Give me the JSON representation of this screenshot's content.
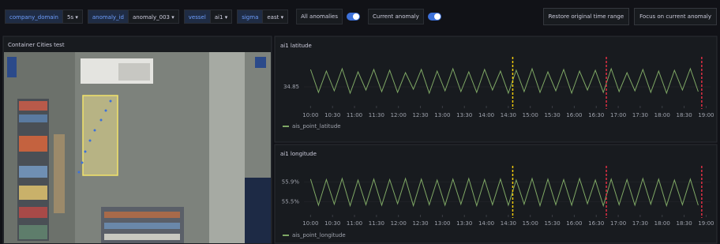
{
  "toolbar": {
    "variables": [
      {
        "label": "company_domain",
        "value": "5s"
      },
      {
        "label": "anomaly_id",
        "value": "anomaly_003"
      },
      {
        "label": "vessel",
        "value": "ai1"
      },
      {
        "label": "sigma",
        "value": "east"
      }
    ],
    "toggles": [
      {
        "label": "All anomalies",
        "on": true
      },
      {
        "label": "Current anomaly",
        "on": true
      }
    ],
    "buttons": [
      "Restore original time range",
      "Focus on current anomaly"
    ]
  },
  "map_panel": {
    "title": "Container Cities test"
  },
  "panels": [
    {
      "type": "line",
      "title": "ai1 latitude",
      "x": [
        10.0,
        10.18,
        10.36,
        10.54,
        10.72,
        10.9,
        11.08,
        11.26,
        11.44,
        11.62,
        11.8,
        11.98,
        12.16,
        12.34,
        12.52,
        12.7,
        12.88,
        13.06,
        13.24,
        13.42,
        13.6,
        13.78,
        13.96,
        14.14,
        14.32,
        14.5,
        14.68,
        14.86,
        15.04,
        15.22,
        15.4,
        15.58,
        15.76,
        15.94,
        16.12,
        16.3,
        16.48,
        16.66,
        16.84,
        17.02,
        17.2,
        17.38,
        17.56,
        17.74,
        17.92,
        18.1,
        18.28,
        18.46,
        18.64,
        18.82
      ],
      "series": [
        {
          "name": "ais_point_latitude",
          "color": "#7fa865",
          "values": [
            34.872,
            34.843,
            34.87,
            34.845,
            34.873,
            34.842,
            34.869,
            34.846,
            34.872,
            34.844,
            34.871,
            34.843,
            34.868,
            34.847,
            34.872,
            34.842,
            34.87,
            34.845,
            34.873,
            34.844,
            34.869,
            34.843,
            34.872,
            34.846,
            34.87,
            34.842,
            34.871,
            34.844,
            34.873,
            34.843,
            34.869,
            34.845,
            34.872,
            34.842,
            34.87,
            34.846,
            34.871,
            34.843,
            34.873,
            34.844,
            34.868,
            34.845,
            34.872,
            34.843,
            34.87,
            34.842,
            34.871,
            34.846,
            34.873,
            34.844
          ]
        }
      ],
      "xlim": [
        9.85,
        19.1
      ],
      "ylim": [
        34.83,
        34.88
      ],
      "xticks": [
        {
          "value": 10,
          "label": "10:00"
        },
        {
          "value": 10.5,
          "label": "10:30"
        },
        {
          "value": 11,
          "label": "11:00"
        },
        {
          "value": 11.5,
          "label": "11:30"
        },
        {
          "value": 12,
          "label": "12:00"
        },
        {
          "value": 12.5,
          "label": "12:30"
        },
        {
          "value": 13,
          "label": "13:00"
        },
        {
          "value": 13.5,
          "label": "13:30"
        },
        {
          "value": 14,
          "label": "14:00"
        },
        {
          "value": 14.5,
          "label": "14:30"
        },
        {
          "value": 15,
          "label": "15:00"
        },
        {
          "value": 15.5,
          "label": "15:30"
        },
        {
          "value": 16,
          "label": "16:00"
        },
        {
          "value": 16.5,
          "label": "16:30"
        },
        {
          "value": 17,
          "label": "17:00"
        },
        {
          "value": 17.5,
          "label": "17:30"
        },
        {
          "value": 18,
          "label": "18:00"
        },
        {
          "value": 18.5,
          "label": "18:30"
        },
        {
          "value": 19,
          "label": "19:00"
        }
      ],
      "yticks": [
        34.85
      ],
      "markers": [
        {
          "value": 14.6,
          "color": "#f2cc0c"
        },
        {
          "value": 16.73,
          "color": "#e02f44"
        },
        {
          "value": 18.9,
          "color": "#e02f44"
        }
      ]
    },
    {
      "type": "line",
      "title": "ai1 longitude",
      "x": [
        10.0,
        10.18,
        10.36,
        10.54,
        10.72,
        10.9,
        11.08,
        11.26,
        11.44,
        11.62,
        11.8,
        11.98,
        12.16,
        12.34,
        12.52,
        12.7,
        12.88,
        13.06,
        13.24,
        13.42,
        13.6,
        13.78,
        13.96,
        14.14,
        14.32,
        14.5,
        14.68,
        14.86,
        15.04,
        15.22,
        15.4,
        15.58,
        15.76,
        15.94,
        16.12,
        16.3,
        16.48,
        16.66,
        16.84,
        17.02,
        17.2,
        17.38,
        17.56,
        17.74,
        17.92,
        18.1,
        18.28,
        18.46,
        18.64,
        18.82
      ],
      "series": [
        {
          "name": "ais_point_longitude",
          "color": "#7fa865",
          "values": [
            55.96,
            55.43,
            55.95,
            55.45,
            55.97,
            55.42,
            55.94,
            55.44,
            55.96,
            55.43,
            55.95,
            55.46,
            55.97,
            55.42,
            55.96,
            55.44,
            55.94,
            55.43,
            55.96,
            55.45,
            55.97,
            55.42,
            55.95,
            55.44,
            55.96,
            55.43,
            55.94,
            55.45,
            55.97,
            55.42,
            55.96,
            55.44,
            55.95,
            55.43,
            55.97,
            55.46,
            55.94,
            55.42,
            55.96,
            55.44,
            55.95,
            55.43,
            55.97,
            55.45,
            55.96,
            55.42,
            55.94,
            55.44,
            55.96,
            55.43
          ]
        }
      ],
      "xlim": [
        9.85,
        19.1
      ],
      "ylim": [
        55.3,
        56.1
      ],
      "xticks": [
        {
          "value": 10,
          "label": "10:00"
        },
        {
          "value": 10.5,
          "label": "10:30"
        },
        {
          "value": 11,
          "label": "11:00"
        },
        {
          "value": 11.5,
          "label": "11:30"
        },
        {
          "value": 12,
          "label": "12:00"
        },
        {
          "value": 12.5,
          "label": "12:30"
        },
        {
          "value": 13,
          "label": "13:00"
        },
        {
          "value": 13.5,
          "label": "13:30"
        },
        {
          "value": 14,
          "label": "14:00"
        },
        {
          "value": 14.5,
          "label": "14:30"
        },
        {
          "value": 15,
          "label": "15:00"
        },
        {
          "value": 15.5,
          "label": "15:30"
        },
        {
          "value": 16,
          "label": "16:00"
        },
        {
          "value": 16.5,
          "label": "16:30"
        },
        {
          "value": 17,
          "label": "17:00"
        },
        {
          "value": 17.5,
          "label": "17:30"
        },
        {
          "value": 18,
          "label": "18:00"
        },
        {
          "value": 18.5,
          "label": "18:30"
        },
        {
          "value": 19,
          "label": "19:00"
        }
      ],
      "yticks": [
        {
          "value": 55.9,
          "label": "55.9%"
        },
        {
          "value": 55.5,
          "label": "55.5%"
        }
      ],
      "markers": [
        {
          "value": 14.6,
          "color": "#f2cc0c"
        },
        {
          "value": 16.73,
          "color": "#e02f44"
        },
        {
          "value": 18.9,
          "color": "#e02f44"
        }
      ]
    }
  ]
}
